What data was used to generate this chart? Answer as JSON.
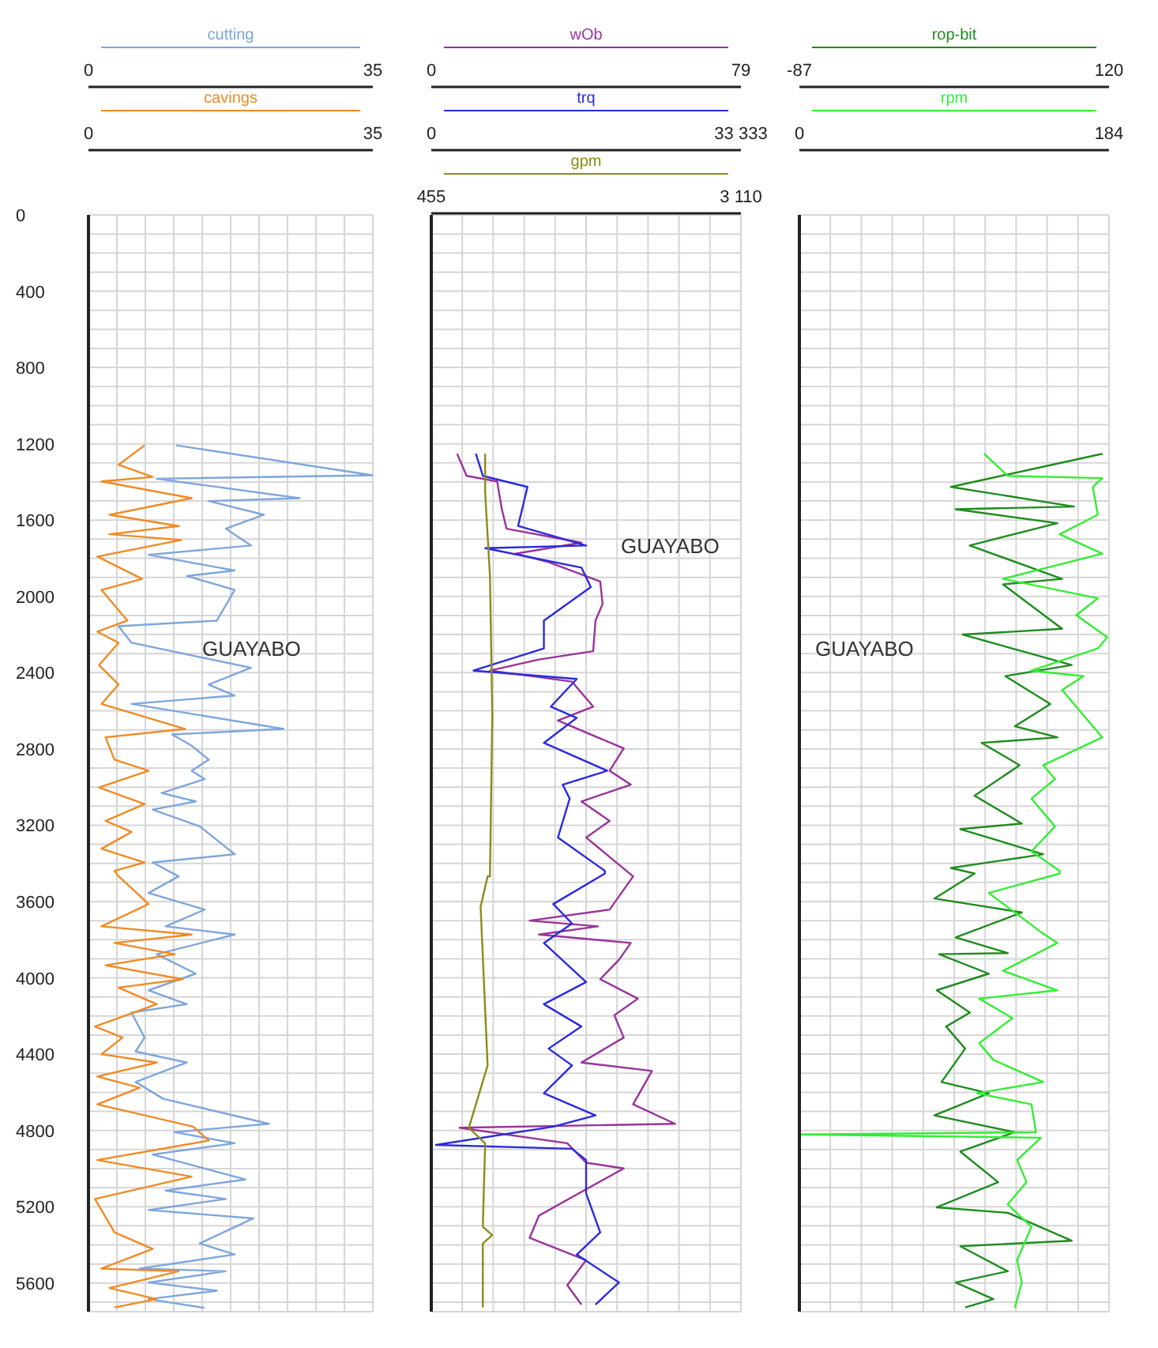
{
  "chart_data": [
    {
      "type": "line",
      "annotations": [
        "GUAYABO"
      ],
      "grid": true,
      "ylim": [
        5750,
        0
      ],
      "yticks": [
        0,
        {
          "value": 100,
          "label": null
        },
        {
          "value": 200,
          "label": null
        },
        {
          "value": 300,
          "label": null
        },
        400,
        {
          "value": 500,
          "label": null
        },
        {
          "value": 600,
          "label": null
        },
        {
          "value": 700,
          "label": null
        },
        800,
        {
          "value": 900,
          "label": null
        },
        {
          "value": 1000,
          "label": null
        },
        {
          "value": 1100,
          "label": null
        },
        1200,
        {
          "value": 1300,
          "label": null
        },
        {
          "value": 1400,
          "label": null
        },
        {
          "value": 1500,
          "label": null
        },
        1600,
        {
          "value": 1700,
          "label": null
        },
        {
          "value": 1800,
          "label": null
        },
        {
          "value": 1900,
          "label": null
        },
        2000,
        {
          "value": 2100,
          "label": null
        },
        {
          "value": 2200,
          "label": null
        },
        {
          "value": 2300,
          "label": null
        },
        2400,
        {
          "value": 2500,
          "label": null
        },
        {
          "value": 2600,
          "label": null
        },
        {
          "value": 2700,
          "label": null
        },
        2800,
        {
          "value": 2900,
          "label": null
        },
        {
          "value": 3000,
          "label": null
        },
        {
          "value": 3100,
          "label": null
        },
        3200,
        {
          "value": 3300,
          "label": null
        },
        {
          "value": 3400,
          "label": null
        },
        {
          "value": 3500,
          "label": null
        },
        3600,
        {
          "value": 3700,
          "label": null
        },
        {
          "value": 3800,
          "label": null
        },
        {
          "value": 3900,
          "label": null
        },
        4000,
        {
          "value": 4100,
          "label": null
        },
        {
          "value": 4200,
          "label": null
        },
        {
          "value": 4300,
          "label": null
        },
        4400,
        {
          "value": 4500,
          "label": null
        },
        {
          "value": 4600,
          "label": null
        },
        {
          "value": 4700,
          "label": null
        },
        4800,
        {
          "value": 4900,
          "label": null
        },
        {
          "value": 5000,
          "label": null
        },
        {
          "value": 5100,
          "label": null
        },
        5200,
        {
          "value": 5300,
          "label": null
        },
        {
          "value": 5400,
          "label": null
        },
        {
          "value": 5500,
          "label": null
        },
        5600,
        {
          "value": 5700,
          "label": null
        }
      ],
      "xlim": [
        0,
        35
      ],
      "xticks": [
        0,
        {
          "value": 3.5,
          "label": null
        },
        {
          "value": 7,
          "label": null
        },
        {
          "value": 10.5,
          "label": null
        },
        {
          "value": 14,
          "label": null
        },
        {
          "value": 17.5,
          "label": null
        },
        {
          "value": 21,
          "label": null
        },
        {
          "value": 24.5,
          "label": null
        },
        {
          "value": 28,
          "label": null
        },
        {
          "value": 31.5,
          "label": null
        },
        35
      ],
      "x2lim": [
        0,
        35
      ],
      "x2ticks": [
        0,
        35
      ],
      "series": [
        {
          "name": "cutting",
          "color": "#7ea6dc",
          "x": [
            10.8,
            35,
            8.4,
            26,
            14.8,
            21.6,
            16.9,
            20,
            7.4,
            18,
            12.1,
            18,
            15.8,
            3.7,
            5.3,
            20,
            14.8,
            18,
            5.3,
            24,
            10.3,
            12.7,
            14.8,
            12.7,
            14.3,
            9,
            13.2,
            7.9,
            13.7,
            18,
            7.9,
            11.1,
            7.4,
            14.3,
            9.5,
            18,
            8.4,
            13.2,
            7.4,
            12.1,
            5.3,
            6.9,
            5.8,
            12.1,
            5.8,
            9.2,
            22.2,
            10.6,
            18,
            7.9,
            19.3,
            9.5,
            16.9,
            7.4,
            20.3,
            13.7,
            18,
            6.3,
            16.9,
            7.4,
            15.8,
            7.4,
            14.3
          ],
          "values": [
            1208,
            1365,
            1383,
            1485,
            1500,
            1572,
            1645,
            1733,
            1782,
            1864,
            1893,
            1966,
            2127,
            2156,
            2243,
            2374,
            2462,
            2520,
            2564,
            2695,
            2724,
            2783,
            2856,
            2914,
            2958,
            3031,
            3075,
            3118,
            3206,
            3352,
            3395,
            3468,
            3555,
            3642,
            3730,
            3773,
            3876,
            3978,
            4065,
            4138,
            4182,
            4313,
            4386,
            4444,
            4546,
            4634,
            4765,
            4809,
            4867,
            4926,
            5057,
            5115,
            5159,
            5217,
            5261,
            5392,
            5450,
            5524,
            5538,
            5597,
            5640,
            5684,
            5730
          ]
        },
        {
          "name": "cavings",
          "color": "#f08a24",
          "axis": "x2",
          "x": [
            6.9,
            3.7,
            7.9,
            1.6,
            12.7,
            2.6,
            11.1,
            2.6,
            11.4,
            1.1,
            6.6,
            1.6,
            4.8,
            1.1,
            3.7,
            1.3,
            3.7,
            1.6,
            11.9,
            2.1,
            3.2,
            7.4,
            1.3,
            6.9,
            2.1,
            5.3,
            1.6,
            6.9,
            3.2,
            3.7,
            7.4,
            1.6,
            12.7,
            3.2,
            10.6,
            2.1,
            11.6,
            3.7,
            8.4,
            0.8,
            4.2,
            1.6,
            8.4,
            1.1,
            6.3,
            1.1,
            12.9,
            14.8,
            1.1,
            12.7,
            0.8,
            3.2,
            7.9,
            1.6,
            11.1,
            2.6,
            8.4,
            3.2
          ],
          "values": [
            1208,
            1310,
            1374,
            1397,
            1485,
            1572,
            1631,
            1674,
            1704,
            1791,
            1908,
            1966,
            2127,
            2185,
            2243,
            2360,
            2462,
            2564,
            2695,
            2739,
            2856,
            2914,
            3002,
            3089,
            3177,
            3235,
            3323,
            3395,
            3439,
            3467,
            3613,
            3730,
            3773,
            3817,
            3876,
            3934,
            4007,
            4051,
            4138,
            4255,
            4313,
            4400,
            4444,
            4517,
            4576,
            4663,
            4780,
            4853,
            4955,
            5042,
            5159,
            5334,
            5421,
            5524,
            5538,
            5626,
            5684,
            5728
          ]
        }
      ]
    },
    {
      "type": "line",
      "annotations": [
        "GUAYABO"
      ],
      "grid": true,
      "tick_labels": "x",
      "ylim": [
        5750,
        0
      ],
      "yticks": [
        0,
        {
          "value": 100,
          "label": null
        },
        {
          "value": 200,
          "label": null
        },
        {
          "value": 300,
          "label": null
        },
        400,
        {
          "value": 500,
          "label": null
        },
        {
          "value": 600,
          "label": null
        },
        {
          "value": 700,
          "label": null
        },
        800,
        {
          "value": 900,
          "label": null
        },
        {
          "value": 1000,
          "label": null
        },
        {
          "value": 1100,
          "label": null
        },
        1200,
        {
          "value": 1300,
          "label": null
        },
        {
          "value": 1400,
          "label": null
        },
        {
          "value": 1500,
          "label": null
        },
        1600,
        {
          "value": 1700,
          "label": null
        },
        {
          "value": 1800,
          "label": null
        },
        {
          "value": 1900,
          "label": null
        },
        2000,
        {
          "value": 2100,
          "label": null
        },
        {
          "value": 2200,
          "label": null
        },
        {
          "value": 2300,
          "label": null
        },
        2400,
        {
          "value": 2500,
          "label": null
        },
        {
          "value": 2600,
          "label": null
        },
        {
          "value": 2700,
          "label": null
        },
        2800,
        {
          "value": 2900,
          "label": null
        },
        {
          "value": 3000,
          "label": null
        },
        {
          "value": 3100,
          "label": null
        },
        3200,
        {
          "value": 3300,
          "label": null
        },
        {
          "value": 3400,
          "label": null
        },
        {
          "value": 3500,
          "label": null
        },
        3600,
        {
          "value": 3700,
          "label": null
        },
        {
          "value": 3800,
          "label": null
        },
        {
          "value": 3900,
          "label": null
        },
        4000,
        {
          "value": 4100,
          "label": null
        },
        {
          "value": 4200,
          "label": null
        },
        {
          "value": 4300,
          "label": null
        },
        4400,
        {
          "value": 4500,
          "label": null
        },
        {
          "value": 4600,
          "label": null
        },
        {
          "value": 4700,
          "label": null
        },
        4800,
        {
          "value": 4900,
          "label": null
        },
        {
          "value": 5000,
          "label": null
        },
        {
          "value": 5100,
          "label": null
        },
        5200,
        {
          "value": 5300,
          "label": null
        },
        {
          "value": 5400,
          "label": null
        },
        {
          "value": 5500,
          "label": null
        },
        5600,
        {
          "value": 5700,
          "label": null
        }
      ],
      "xlim": [
        0,
        79
      ],
      "xticks": [
        0,
        {
          "value": 7.9,
          "label": null
        },
        {
          "value": 15.8,
          "label": null
        },
        {
          "value": 23.7,
          "label": null
        },
        {
          "value": 31.6,
          "label": null
        },
        {
          "value": 39.5,
          "label": null
        },
        {
          "value": 47.4,
          "label": null
        },
        {
          "value": 55.3,
          "label": null
        },
        {
          "value": 63.2,
          "label": null
        },
        {
          "value": 71.1,
          "label": null
        },
        79
      ],
      "x2lim": [
        0,
        33333
      ],
      "x2ticks": [
        0,
        {
          "value": 33333,
          "label": "33 333"
        }
      ],
      "series": [
        {
          "name": "wOb",
          "color": "#993399",
          "x": [
            6.6,
            9,
            16.8,
            18,
            19.2,
            38.3,
            21.5,
            29.9,
            43.1,
            43.7,
            41.9,
            41.3,
            27.5,
            15,
            35.9,
            41.3,
            32.3,
            49.1,
            45.5,
            50.9,
            38.3,
            45.5,
            39.5,
            51.5,
            45.5,
            25.1,
            42.5,
            27.5,
            50.9,
            47.9,
            43.1,
            52.7,
            46.7,
            49.1,
            38.3,
            56.3,
            51.5,
            62.2,
            7.2,
            34.7,
            39.5,
            49.1,
            27.5,
            25.1,
            39.5,
            34.7,
            38.3
          ],
          "values": [
            1252,
            1368,
            1397,
            1543,
            1645,
            1718,
            1776,
            1820,
            1922,
            2039,
            2127,
            2287,
            2331,
            2389,
            2447,
            2578,
            2651,
            2797,
            2914,
            2987,
            3075,
            3177,
            3264,
            3468,
            3642,
            3700,
            3730,
            3773,
            3817,
            3905,
            4007,
            4109,
            4196,
            4313,
            4444,
            4488,
            4663,
            4765,
            4786,
            4867,
            4969,
            4999,
            5246,
            5363,
            5480,
            5611,
            5713
          ]
        },
        {
          "name": "trq",
          "color": "#2a2add",
          "axis": "x2",
          "x": [
            4798,
            5556,
            10354,
            9343,
            16667,
            5808,
            16162,
            17172,
            12121,
            12121,
            4545,
            15657,
            12879,
            15657,
            12121,
            18939,
            14141,
            14899,
            13636,
            18687,
            18687,
            13131,
            15152,
            12121,
            16667,
            12121,
            16162,
            12626,
            15152,
            12121,
            17677,
            13131,
            505,
            15152,
            16667,
            16667,
            18182,
            15657,
            20202,
            17677
          ],
          "values": [
            1252,
            1368,
            1426,
            1631,
            1733,
            1747,
            1849,
            1951,
            2127,
            2273,
            2389,
            2433,
            2578,
            2637,
            2768,
            2914,
            2987,
            3060,
            3264,
            3439,
            3453,
            3613,
            3715,
            3817,
            4022,
            4138,
            4255,
            4371,
            4459,
            4605,
            4721,
            4780,
            4876,
            4896,
            4955,
            5130,
            5334,
            5451,
            5597,
            5713
          ]
        }
      ]
    },
    {
      "type": "line",
      "tick_labels": "x",
      "ylim": [
        5750,
        0
      ],
      "xlim": [
        455,
        3110
      ],
      "xticks": [
        455,
        {
          "value": 3110,
          "label": "3 110"
        }
      ],
      "series": [
        {
          "name": "gpm",
          "color": "#8b8b1a",
          "x": [
            917,
            917,
            958,
            978,
            958,
            938,
            878,
            938,
            777,
            917,
            897,
            978,
            897,
            897
          ],
          "values": [
            1252,
            1456,
            1893,
            2622,
            3468,
            3467,
            3628,
            4459,
            4786,
            4867,
            5305,
            5349,
            5392,
            5728
          ]
        }
      ]
    },
    {
      "type": "line",
      "annotations": [
        "GUAYABO"
      ],
      "grid": true,
      "tick_labels": "x",
      "ylim": [
        5750,
        0
      ],
      "yticks": [
        0,
        {
          "value": 100,
          "label": null
        },
        {
          "value": 200,
          "label": null
        },
        {
          "value": 300,
          "label": null
        },
        400,
        {
          "value": 500,
          "label": null
        },
        {
          "value": 600,
          "label": null
        },
        {
          "value": 700,
          "label": null
        },
        800,
        {
          "value": 900,
          "label": null
        },
        {
          "value": 1000,
          "label": null
        },
        {
          "value": 1100,
          "label": null
        },
        1200,
        {
          "value": 1300,
          "label": null
        },
        {
          "value": 1400,
          "label": null
        },
        {
          "value": 1500,
          "label": null
        },
        1600,
        {
          "value": 1700,
          "label": null
        },
        {
          "value": 1800,
          "label": null
        },
        {
          "value": 1900,
          "label": null
        },
        2000,
        {
          "value": 2100,
          "label": null
        },
        {
          "value": 2200,
          "label": null
        },
        {
          "value": 2300,
          "label": null
        },
        2400,
        {
          "value": 2500,
          "label": null
        },
        {
          "value": 2600,
          "label": null
        },
        {
          "value": 2700,
          "label": null
        },
        2800,
        {
          "value": 2900,
          "label": null
        },
        {
          "value": 3000,
          "label": null
        },
        {
          "value": 3100,
          "label": null
        },
        3200,
        {
          "value": 3300,
          "label": null
        },
        {
          "value": 3400,
          "label": null
        },
        {
          "value": 3500,
          "label": null
        },
        3600,
        {
          "value": 3700,
          "label": null
        },
        {
          "value": 3800,
          "label": null
        },
        {
          "value": 3900,
          "label": null
        },
        4000,
        {
          "value": 4100,
          "label": null
        },
        {
          "value": 4200,
          "label": null
        },
        {
          "value": 4300,
          "label": null
        },
        4400,
        {
          "value": 4500,
          "label": null
        },
        {
          "value": 4600,
          "label": null
        },
        {
          "value": 4700,
          "label": null
        },
        4800,
        {
          "value": 4900,
          "label": null
        },
        {
          "value": 5000,
          "label": null
        },
        {
          "value": 5100,
          "label": null
        },
        5200,
        {
          "value": 5300,
          "label": null
        },
        {
          "value": 5400,
          "label": null
        },
        {
          "value": 5500,
          "label": null
        },
        5600,
        {
          "value": 5700,
          "label": null
        }
      ],
      "xlim": [
        -87,
        120
      ],
      "xticks": [
        -87,
        {
          "value": -66.3,
          "label": null
        },
        {
          "value": -45.6,
          "label": null
        },
        {
          "value": -24.9,
          "label": null
        },
        {
          "value": -4.2,
          "label": null
        },
        {
          "value": 16.5,
          "label": null
        },
        {
          "value": 37.2,
          "label": null
        },
        {
          "value": 57.9,
          "label": null
        },
        {
          "value": 78.6,
          "label": null
        },
        {
          "value": 99.3,
          "label": null
        },
        120
      ],
      "x2lim": [
        0,
        184
      ],
      "x2ticks": [
        0,
        184
      ],
      "series": [
        {
          "name": "rop-bit",
          "color": "#1e8c1e",
          "x": [
            115.6,
            14.3,
            96.6,
            17.5,
            85.5,
            26.9,
            88.6,
            49.1,
            88.6,
            22.2,
            95,
            50.7,
            80.8,
            57,
            85.5,
            34.9,
            60.2,
            30.1,
            61.7,
            20.6,
            76,
            14.3,
            30.1,
            3.2,
            61.7,
            17.5,
            52.3,
            6.4,
            39.6,
            4.8,
            27,
            11.1,
            23.8,
            8,
            39.6,
            3.2,
            57,
            20.6,
            45.9,
            4.8,
            52.3,
            95,
            20.6,
            52.3,
            17.5,
            42.7,
            23.8
          ],
          "values": [
            1252,
            1426,
            1529,
            1543,
            1616,
            1733,
            1908,
            1937,
            2170,
            2200,
            2360,
            2418,
            2564,
            2681,
            2739,
            2768,
            2885,
            3045,
            3191,
            3220,
            3352,
            3424,
            3453,
            3584,
            3657,
            3788,
            3870,
            3876,
            3978,
            4065,
            4182,
            4255,
            4371,
            4546,
            4605,
            4721,
            4809,
            4911,
            5071,
            5203,
            5232,
            5378,
            5407,
            5538,
            5597,
            5684,
            5728
          ]
        },
        {
          "name": "rpm",
          "color": "#33ee33",
          "axis": "x2",
          "x": [
            109.7,
            123.8,
            180,
            174.4,
            177.3,
            154.7,
            180,
            121,
            177.3,
            164.6,
            182.9,
            177.3,
            137.9,
            168.8,
            156.1,
            180,
            144.9,
            151.9,
            137.9,
            151.9,
            137.9,
            154.7,
            154.7,
            112.5,
            143.5,
            153.3,
            121,
            153.3,
            106.9,
            126.6,
            106.9,
            115.3,
            144.9,
            105.5,
            137.9,
            140.6,
            1.4,
            143.5,
            129.4,
            135,
            123.8,
            137.9,
            129.4,
            132.2,
            128
          ],
          "values": [
            1252,
            1368,
            1380,
            1426,
            1572,
            1674,
            1776,
            1908,
            2010,
            2098,
            2214,
            2273,
            2389,
            2418,
            2491,
            2739,
            2885,
            2958,
            3060,
            3206,
            3337,
            3439,
            3453,
            3555,
            3759,
            3817,
            3963,
            4065,
            4109,
            4211,
            4342,
            4430,
            4546,
            4605,
            4663,
            4809,
            4821,
            4838,
            4955,
            5071,
            5188,
            5305,
            5480,
            5597,
            5730
          ]
        }
      ]
    }
  ]
}
